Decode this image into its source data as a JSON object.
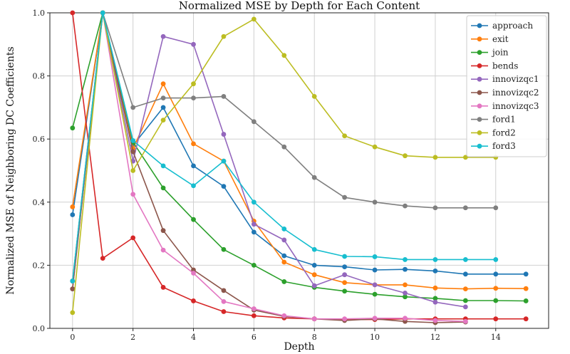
{
  "chart_data": {
    "type": "line",
    "title": "Normalized MSE by Depth for Each Content",
    "xlabel": "Depth",
    "ylabel": "Normalized MSE of Neighboring DC Coefficients",
    "xlim": [
      -0.75,
      15.75
    ],
    "ylim": [
      0,
      1.0
    ],
    "xticks": [
      0,
      2,
      4,
      6,
      8,
      10,
      12,
      14
    ],
    "yticks": [
      0.0,
      0.2,
      0.4,
      0.6,
      0.8,
      1.0
    ],
    "grid": true,
    "legend_position": "top-right",
    "series": [
      {
        "name": "approach",
        "color": "#1f77b4",
        "x": [
          0,
          1,
          2,
          3,
          4,
          5,
          6,
          7,
          8,
          9,
          10,
          11,
          12,
          13,
          14,
          15
        ],
        "y": [
          0.36,
          1.0,
          0.58,
          0.7,
          0.515,
          0.45,
          0.305,
          0.23,
          0.2,
          0.195,
          0.185,
          0.187,
          0.182,
          0.172,
          0.172,
          0.172
        ]
      },
      {
        "name": "exit",
        "color": "#ff7f0e",
        "x": [
          0,
          1,
          2,
          3,
          4,
          5,
          6,
          7,
          8,
          9,
          10,
          11,
          12,
          13,
          14,
          15
        ],
        "y": [
          0.385,
          1.0,
          0.57,
          0.775,
          0.585,
          0.53,
          0.34,
          0.21,
          0.17,
          0.145,
          0.138,
          0.138,
          0.128,
          0.125,
          0.127,
          0.126
        ]
      },
      {
        "name": "join",
        "color": "#2ca02c",
        "x": [
          0,
          1,
          2,
          3,
          4,
          5,
          6,
          7,
          8,
          9,
          10,
          11,
          12,
          13,
          14,
          15
        ],
        "y": [
          0.635,
          1.0,
          0.59,
          0.445,
          0.345,
          0.25,
          0.2,
          0.148,
          0.13,
          0.118,
          0.108,
          0.1,
          0.095,
          0.088,
          0.088,
          0.087
        ]
      },
      {
        "name": "bends",
        "color": "#d62728",
        "x": [
          0,
          1,
          2,
          3,
          4,
          5,
          6,
          7,
          8,
          9,
          10,
          11,
          12,
          13,
          14,
          15
        ],
        "y": [
          1.0,
          0.222,
          0.287,
          0.13,
          0.087,
          0.053,
          0.04,
          0.033,
          0.03,
          0.028,
          0.028,
          0.03,
          0.03,
          0.03,
          0.03,
          0.03
        ]
      },
      {
        "name": "innovizqc1",
        "color": "#9467bd",
        "x": [
          0,
          1,
          2,
          3,
          4,
          5,
          6,
          7,
          8,
          9,
          10,
          11,
          12,
          13
        ],
        "y": [
          0.125,
          1.0,
          0.53,
          0.925,
          0.9,
          0.615,
          0.33,
          0.28,
          0.135,
          0.17,
          0.138,
          0.112,
          0.083,
          0.068
        ]
      },
      {
        "name": "innovizqc2",
        "color": "#8c564b",
        "x": [
          0,
          1,
          2,
          3,
          4,
          5,
          6,
          7,
          8,
          9,
          10,
          11,
          12,
          13
        ],
        "y": [
          0.125,
          1.0,
          0.56,
          0.31,
          0.185,
          0.12,
          0.058,
          0.038,
          0.03,
          0.025,
          0.03,
          0.022,
          0.018,
          0.02
        ]
      },
      {
        "name": "innovizqc3",
        "color": "#e377c2",
        "x": [
          0,
          1,
          2,
          3,
          4,
          5,
          6,
          7,
          8,
          9,
          10,
          11,
          12,
          13
        ],
        "y": [
          0.15,
          1.0,
          0.425,
          0.248,
          0.175,
          0.085,
          0.062,
          0.04,
          0.03,
          0.03,
          0.032,
          0.032,
          0.025,
          0.022
        ]
      },
      {
        "name": "ford1",
        "color": "#7f7f7f",
        "x": [
          0,
          1,
          2,
          3,
          4,
          5,
          6,
          7,
          8,
          9,
          10,
          11,
          12,
          13,
          14
        ],
        "y": [
          0.15,
          1.0,
          0.7,
          0.73,
          0.73,
          0.735,
          0.655,
          0.575,
          0.478,
          0.415,
          0.4,
          0.388,
          0.382,
          0.382,
          0.382
        ]
      },
      {
        "name": "ford2",
        "color": "#bcbd22",
        "x": [
          0,
          1,
          2,
          3,
          4,
          5,
          6,
          7,
          8,
          9,
          10,
          11,
          12,
          13,
          14
        ],
        "y": [
          0.05,
          1.0,
          0.5,
          0.66,
          0.775,
          0.925,
          0.98,
          0.865,
          0.735,
          0.61,
          0.575,
          0.547,
          0.542,
          0.542,
          0.542
        ]
      },
      {
        "name": "ford3",
        "color": "#17becf",
        "x": [
          0,
          1,
          2,
          3,
          4,
          5,
          6,
          7,
          8,
          9,
          10,
          11,
          12,
          13,
          14
        ],
        "y": [
          0.15,
          1.0,
          0.595,
          0.515,
          0.452,
          0.53,
          0.4,
          0.315,
          0.25,
          0.228,
          0.227,
          0.218,
          0.218,
          0.218,
          0.218
        ]
      }
    ]
  }
}
